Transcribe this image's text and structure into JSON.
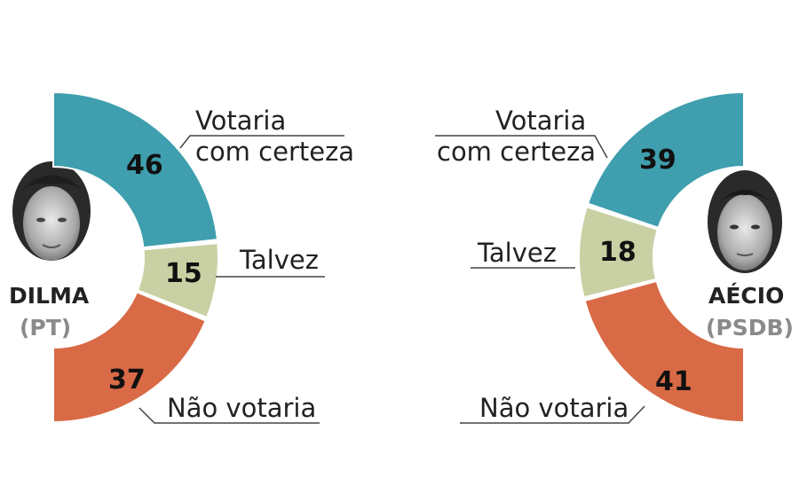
{
  "chart_data": [
    {
      "type": "donut-half",
      "candidate": "DILMA",
      "party": "(PT)",
      "side": "left",
      "series": [
        {
          "label_line1": "Votaria",
          "label_line2": "com certeza",
          "value": 46,
          "color": "#3f9fae"
        },
        {
          "label_line1": "Talvez",
          "label_line2": "",
          "value": 15,
          "color": "#c9d0a3"
        },
        {
          "label_line1": "Não votaria",
          "label_line2": "",
          "value": 37,
          "color": "#d96a46"
        }
      ]
    },
    {
      "type": "donut-half",
      "candidate": "AÉCIO",
      "party": "(PSDB)",
      "side": "right",
      "series": [
        {
          "label_line1": "Votaria",
          "label_line2": "com certeza",
          "value": 39,
          "color": "#3f9fae"
        },
        {
          "label_line1": "Talvez",
          "label_line2": "",
          "value": 18,
          "color": "#c9d0a3"
        },
        {
          "label_line1": "Não votaria",
          "label_line2": "",
          "value": 41,
          "color": "#d96a46"
        }
      ]
    }
  ]
}
